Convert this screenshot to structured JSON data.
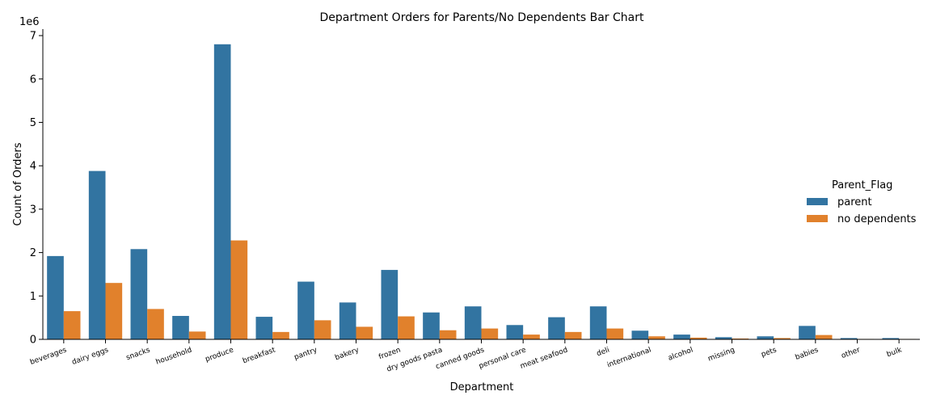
{
  "chart_data": {
    "type": "bar",
    "title": "Department Orders for Parents/No Dependents Bar Chart",
    "xlabel": "Department",
    "ylabel": "Count of Orders",
    "y_offset_label": "1e6",
    "ylim": [
      0,
      7150000
    ],
    "yticks": [
      0,
      1,
      2,
      3,
      4,
      5,
      6,
      7
    ],
    "ytick_scale": 1000000,
    "legend_title": "Parent_Flag",
    "legend_position": "right",
    "categories": [
      "beverages",
      "dairy eggs",
      "snacks",
      "household",
      "produce",
      "breakfast",
      "pantry",
      "bakery",
      "frozen",
      "dry goods pasta",
      "canned goods",
      "personal care",
      "meat seafood",
      "deli",
      "international",
      "alcohol",
      "missing",
      "pets",
      "babies",
      "other",
      "bulk"
    ],
    "series": [
      {
        "name": "parent",
        "color": "#3274a1",
        "values": [
          1920000,
          3880000,
          2080000,
          540000,
          6800000,
          520000,
          1330000,
          850000,
          1600000,
          620000,
          760000,
          330000,
          510000,
          760000,
          200000,
          110000,
          50000,
          70000,
          310000,
          30000,
          30000
        ]
      },
      {
        "name": "no dependents",
        "color": "#e1812c",
        "values": [
          650000,
          1300000,
          700000,
          180000,
          2280000,
          170000,
          440000,
          290000,
          530000,
          210000,
          250000,
          110000,
          170000,
          250000,
          70000,
          40000,
          20000,
          30000,
          100000,
          10000,
          10000
        ]
      }
    ]
  }
}
